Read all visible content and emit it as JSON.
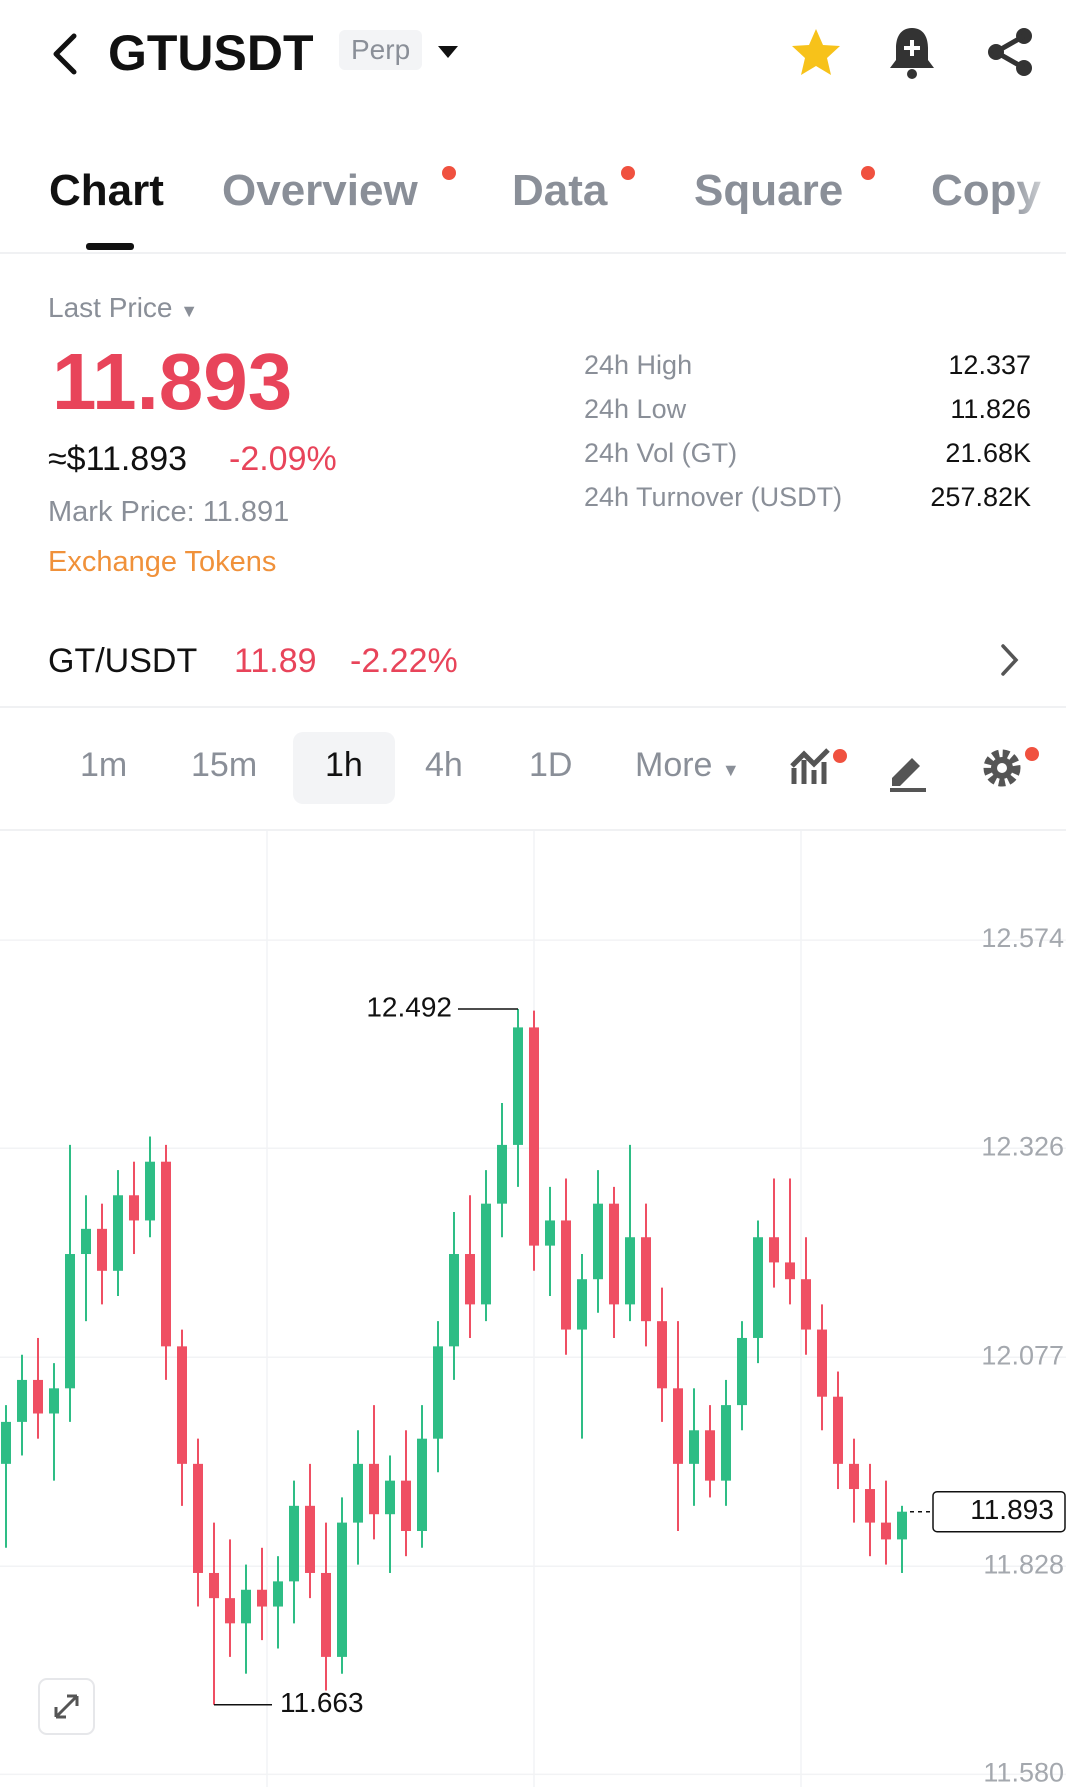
{
  "header": {
    "symbol": "GTUSDT",
    "badge": "Perp"
  },
  "tabs": [
    "Chart",
    "Overview",
    "Data",
    "Square",
    "Copy"
  ],
  "price_panel": {
    "label": "Last Price",
    "price": "11.893",
    "usd": "≈$11.893",
    "change": "-2.09%",
    "mark_price_label": "Mark Price:",
    "mark_price": "11.891",
    "link": "Exchange Tokens"
  },
  "stats": [
    {
      "label": "24h High",
      "value": "12.337"
    },
    {
      "label": "24h Low",
      "value": "11.826"
    },
    {
      "label": "24h Vol (GT)",
      "value": "21.68K"
    },
    {
      "label": "24h Turnover (USDT)",
      "value": "257.82K"
    }
  ],
  "spot": {
    "pair": "GT/USDT",
    "price": "11.89",
    "change": "-2.22%"
  },
  "intervals": [
    "1m",
    "15m",
    "1h",
    "4h",
    "1D",
    "More"
  ],
  "chart_data": {
    "type": "candlestick",
    "up_color": "#2ebd85",
    "down_color": "#ef4f63",
    "ylim": [
      11.565,
      12.704
    ],
    "yticks": [
      12.574,
      12.326,
      12.077,
      11.828,
      {
        "value": 11.58,
        "label": "11.580"
      }
    ],
    "grid": true,
    "open": [
      11.95,
      12.0,
      12.05,
      12.01,
      12.04,
      12.2,
      12.23,
      12.18,
      12.27,
      12.24,
      12.31,
      12.09,
      11.95,
      11.82,
      11.79,
      11.76,
      11.8,
      11.78,
      11.81,
      11.9,
      11.82,
      11.72,
      11.88,
      11.95,
      11.89,
      11.93,
      11.87,
      11.98,
      12.09,
      12.2,
      12.14,
      12.26,
      12.33,
      12.47,
      12.21,
      12.24,
      12.11,
      12.17,
      12.26,
      12.14,
      12.22,
      12.12,
      12.04,
      11.95,
      11.99,
      11.93,
      12.02,
      12.1,
      12.22,
      12.19,
      12.17,
      12.11,
      12.03,
      11.95,
      11.92,
      11.88,
      11.86
    ],
    "high": [
      12.02,
      12.08,
      12.1,
      12.07,
      12.33,
      12.27,
      12.26,
      12.3,
      12.31,
      12.34,
      12.33,
      12.11,
      11.98,
      11.88,
      11.86,
      11.83,
      11.85,
      11.84,
      11.93,
      11.95,
      11.88,
      11.91,
      11.99,
      12.02,
      11.96,
      11.99,
      12.02,
      12.12,
      12.25,
      12.27,
      12.3,
      12.38,
      12.492,
      12.49,
      12.28,
      12.29,
      12.2,
      12.3,
      12.28,
      12.33,
      12.26,
      12.16,
      12.12,
      12.04,
      12.02,
      12.05,
      12.12,
      12.24,
      12.29,
      12.29,
      12.22,
      12.14,
      12.06,
      11.98,
      11.95,
      11.93,
      11.9
    ],
    "low": [
      11.85,
      11.96,
      11.98,
      11.93,
      12.0,
      12.12,
      12.14,
      12.15,
      12.2,
      12.22,
      12.05,
      11.9,
      11.78,
      11.663,
      11.72,
      11.7,
      11.74,
      11.73,
      11.76,
      11.79,
      11.68,
      11.7,
      11.83,
      11.86,
      11.82,
      11.84,
      11.85,
      11.94,
      12.05,
      12.1,
      12.12,
      12.22,
      12.28,
      12.18,
      12.15,
      12.08,
      11.98,
      12.13,
      12.1,
      12.12,
      12.09,
      12.0,
      11.87,
      11.9,
      11.91,
      11.9,
      11.99,
      12.07,
      12.16,
      12.14,
      12.08,
      11.99,
      11.92,
      11.88,
      11.84,
      11.83,
      11.82
    ],
    "close": [
      12.0,
      12.05,
      12.01,
      12.04,
      12.2,
      12.23,
      12.18,
      12.27,
      12.24,
      12.31,
      12.09,
      11.95,
      11.82,
      11.79,
      11.76,
      11.8,
      11.78,
      11.81,
      11.9,
      11.82,
      11.72,
      11.88,
      11.95,
      11.89,
      11.93,
      11.87,
      11.98,
      12.09,
      12.2,
      12.14,
      12.26,
      12.33,
      12.47,
      12.21,
      12.24,
      12.11,
      12.17,
      12.26,
      12.14,
      12.22,
      12.12,
      12.04,
      11.95,
      11.99,
      11.93,
      12.02,
      12.1,
      12.22,
      12.19,
      12.17,
      12.11,
      12.03,
      11.95,
      11.92,
      11.88,
      11.86,
      11.893
    ],
    "max_label": 12.492,
    "min_label": 11.663,
    "last_price": 11.893
  }
}
